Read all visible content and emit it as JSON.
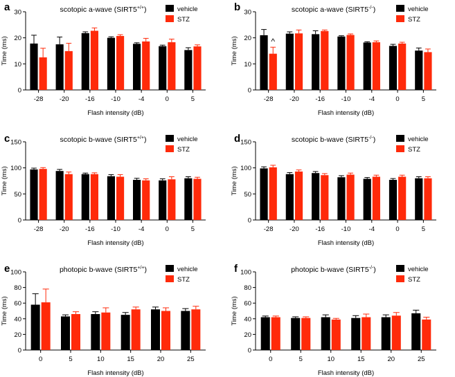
{
  "colors": {
    "vehicle": "#000000",
    "stz": "#ff2a0a"
  },
  "chart_data": [
    {
      "panel": "a",
      "type": "bar",
      "title": "scotopic a-wave",
      "title_gene": "SIRT5",
      "title_genotype": "+/+",
      "xlabel": "Flash intensity (dB)",
      "ylabel": "Time (ms)",
      "ylim": [
        0,
        30
      ],
      "yticks": [
        0,
        10,
        20,
        30
      ],
      "categories": [
        "-28",
        "-20",
        "-16",
        "-10",
        "-4",
        "0",
        "5"
      ],
      "series": [
        {
          "name": "vehicle",
          "values": [
            17.8,
            17.5,
            21.8,
            20.0,
            17.7,
            16.8,
            15.3
          ],
          "errors": [
            3.2,
            2.8,
            0.5,
            0.4,
            0.4,
            0.4,
            0.9
          ]
        },
        {
          "name": "STZ",
          "values": [
            12.5,
            14.9,
            22.7,
            20.7,
            18.6,
            18.3,
            16.7
          ],
          "errors": [
            3.5,
            3.0,
            1.1,
            0.5,
            1.2,
            1.2,
            0.6
          ]
        }
      ],
      "annotations": []
    },
    {
      "panel": "b",
      "type": "bar",
      "title": "scotopic a-wave",
      "title_gene": "SIRT5",
      "title_genotype": "-/-",
      "xlabel": "Flash intensity (dB)",
      "ylabel": "Time (ms)",
      "ylim": [
        0,
        30
      ],
      "yticks": [
        0,
        10,
        20,
        30
      ],
      "categories": [
        "-28",
        "-20",
        "-16",
        "-10",
        "-4",
        "0",
        "5"
      ],
      "series": [
        {
          "name": "vehicle",
          "values": [
            21.0,
            21.6,
            21.4,
            20.5,
            18.2,
            16.9,
            15.1
          ],
          "errors": [
            2.2,
            0.7,
            1.3,
            0.3,
            0.3,
            0.6,
            1.0
          ]
        },
        {
          "name": "STZ",
          "values": [
            13.9,
            21.7,
            22.6,
            21.1,
            18.3,
            17.8,
            14.5
          ],
          "errors": [
            2.5,
            1.3,
            0.4,
            0.4,
            0.5,
            0.5,
            1.2
          ]
        }
      ],
      "annotations": [
        {
          "category": "-28",
          "series": "STZ",
          "text": "^"
        }
      ]
    },
    {
      "panel": "c",
      "type": "bar",
      "title": "scotopic b-wave",
      "title_gene": "SIRT5",
      "title_genotype": "+/+",
      "xlabel": "Flash intensity (dB)",
      "ylabel": "Time (ms)",
      "ylim": [
        0,
        150
      ],
      "yticks": [
        0,
        50,
        100,
        150
      ],
      "categories": [
        "-28",
        "-20",
        "-16",
        "-10",
        "-4",
        "0",
        "5"
      ],
      "series": [
        {
          "name": "vehicle",
          "values": [
            97,
            94,
            88,
            84,
            77,
            76,
            80
          ],
          "errors": [
            2.5,
            3.0,
            2.0,
            3.0,
            3.0,
            3.0,
            3.0
          ]
        },
        {
          "name": "STZ",
          "values": [
            98,
            88,
            88,
            83,
            76,
            78,
            79
          ],
          "errors": [
            2.5,
            4.0,
            2.5,
            4.0,
            3.0,
            5.0,
            3.0
          ]
        }
      ],
      "annotations": []
    },
    {
      "panel": "d",
      "type": "bar",
      "title": "scotopic b-wave",
      "title_gene": "SIRT5",
      "title_genotype": "-/-",
      "xlabel": "Flash intensity (dB)",
      "ylabel": "Time (ms)",
      "ylim": [
        0,
        150
      ],
      "yticks": [
        0,
        50,
        100,
        150
      ],
      "categories": [
        "-28",
        "-20",
        "-16",
        "-10",
        "-4",
        "0",
        "5"
      ],
      "series": [
        {
          "name": "vehicle",
          "values": [
            99,
            88,
            90,
            82,
            79,
            77,
            80
          ],
          "errors": [
            3.0,
            3.0,
            3.0,
            3.0,
            2.5,
            2.5,
            3.0
          ]
        },
        {
          "name": "STZ",
          "values": [
            101,
            93,
            86,
            87,
            83,
            83,
            80
          ],
          "errors": [
            4.0,
            3.0,
            3.0,
            3.0,
            3.0,
            3.0,
            3.0
          ]
        }
      ],
      "annotations": []
    },
    {
      "panel": "e",
      "type": "bar",
      "title": "photopic b-wave",
      "title_gene": "SIRT5",
      "title_genotype": "+/+",
      "xlabel": "Flash intensity (dB)",
      "ylabel": "Time (ms)",
      "ylim": [
        0,
        100
      ],
      "yticks": [
        0,
        20,
        40,
        60,
        80,
        100
      ],
      "categories": [
        "0",
        "5",
        "10",
        "15",
        "20",
        "25"
      ],
      "series": [
        {
          "name": "vehicle",
          "values": [
            58,
            43,
            46,
            45,
            52,
            50
          ],
          "errors": [
            14,
            2,
            3,
            3,
            3,
            3
          ]
        },
        {
          "name": "STZ",
          "values": [
            61,
            46,
            48,
            52,
            50,
            52
          ],
          "errors": [
            17,
            3,
            6,
            3,
            4,
            4
          ]
        }
      ],
      "annotations": []
    },
    {
      "panel": "f",
      "type": "bar",
      "title": "photopic b-wave",
      "title_gene": "SIRT5",
      "title_genotype": "-/-",
      "xlabel": "Flash intensity (dB)",
      "ylabel": "Time (ms)",
      "ylim": [
        0,
        100
      ],
      "yticks": [
        0,
        20,
        40,
        60,
        80,
        100
      ],
      "categories": [
        "0",
        "5",
        "10",
        "15",
        "20",
        "25"
      ],
      "series": [
        {
          "name": "vehicle",
          "values": [
            42,
            41,
            42,
            41,
            42,
            47
          ],
          "errors": [
            1.5,
            1.5,
            3,
            3,
            3,
            4
          ]
        },
        {
          "name": "STZ",
          "values": [
            42,
            41,
            39,
            42,
            44,
            39
          ],
          "errors": [
            1.5,
            1.5,
            1.5,
            4,
            4,
            3
          ]
        }
      ],
      "annotations": []
    }
  ]
}
